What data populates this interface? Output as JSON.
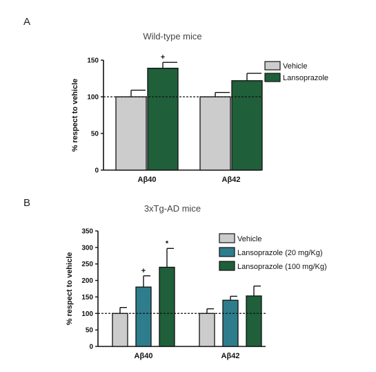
{
  "chart_data": [
    {
      "panel": "A",
      "type": "bar",
      "title": "Wild-type mice",
      "ylabel": "% respect to vehicle",
      "xlabel": "",
      "ylim": [
        0,
        150
      ],
      "yticks": [
        0,
        50,
        100,
        150
      ],
      "reference_line": 100,
      "legend_position": "top-right",
      "categories": [
        "Aβ40",
        "Aβ42"
      ],
      "series": [
        {
          "name": "Vehicle",
          "color": "#cccccc",
          "values": [
            100,
            100
          ],
          "errors": [
            9,
            6
          ],
          "annotations": [
            "",
            ""
          ]
        },
        {
          "name": "Lansoprazole",
          "color": "#1f5f3a",
          "values": [
            139,
            122
          ],
          "errors": [
            8,
            10
          ],
          "annotations": [
            "+",
            ""
          ]
        }
      ]
    },
    {
      "panel": "B",
      "type": "bar",
      "title": "3xTg-AD mice",
      "ylabel": "% respect to vehicle",
      "xlabel": "",
      "ylim": [
        0,
        350
      ],
      "yticks": [
        0,
        50,
        100,
        150,
        200,
        250,
        300,
        350
      ],
      "reference_line": 100,
      "legend_position": "top-right",
      "categories": [
        "Aβ40",
        "Aβ42"
      ],
      "series": [
        {
          "name": "Vehicle",
          "color": "#cccccc",
          "values": [
            100,
            100
          ],
          "errors": [
            18,
            14
          ],
          "annotations": [
            "",
            ""
          ]
        },
        {
          "name": "Lansoprazole (20 mg/Kg)",
          "color": "#2e7d8c",
          "values": [
            180,
            140
          ],
          "errors": [
            34,
            12
          ],
          "annotations": [
            "+",
            ""
          ]
        },
        {
          "name": "Lansoprazole (100 mg/Kg)",
          "color": "#1f5f3a",
          "values": [
            240,
            153
          ],
          "errors": [
            57,
            30
          ],
          "annotations": [
            "*",
            ""
          ]
        }
      ]
    }
  ]
}
